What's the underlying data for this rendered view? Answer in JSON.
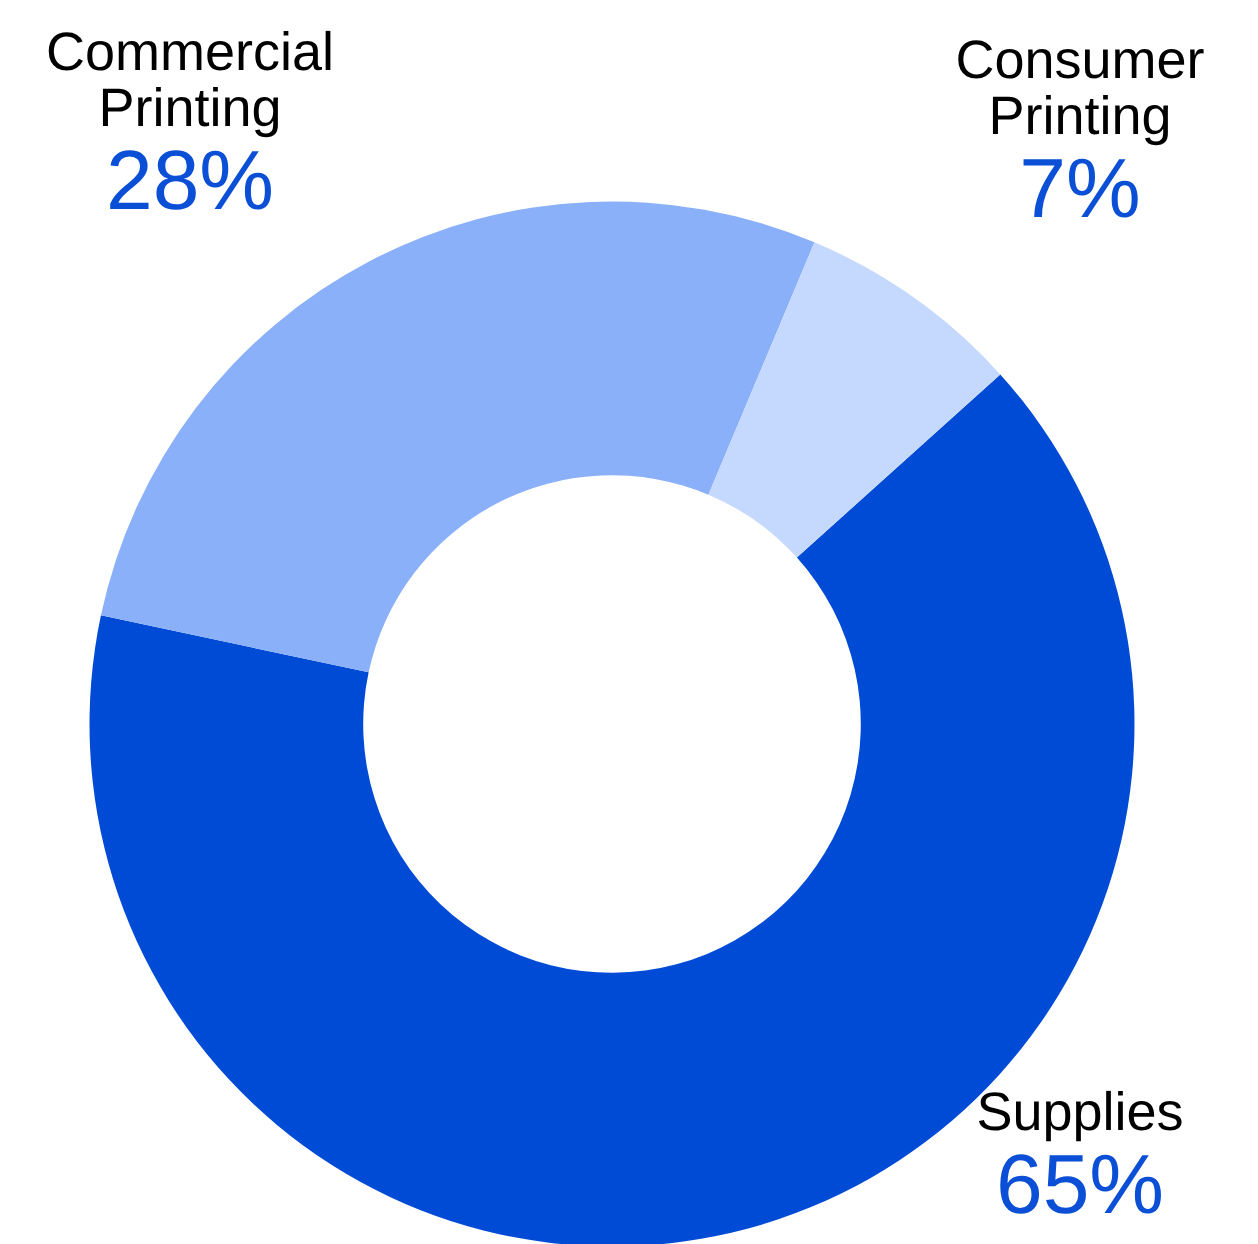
{
  "chart_data": {
    "type": "donut",
    "categories": [
      "Supplies",
      "Commercial Printing",
      "Consumer Printing"
    ],
    "values": [
      65,
      28,
      7
    ],
    "colors": [
      "#004bd6",
      "#8ab0fa",
      "#c5d8fd"
    ],
    "value_labels": [
      "65%",
      "28%",
      "7%"
    ]
  }
}
